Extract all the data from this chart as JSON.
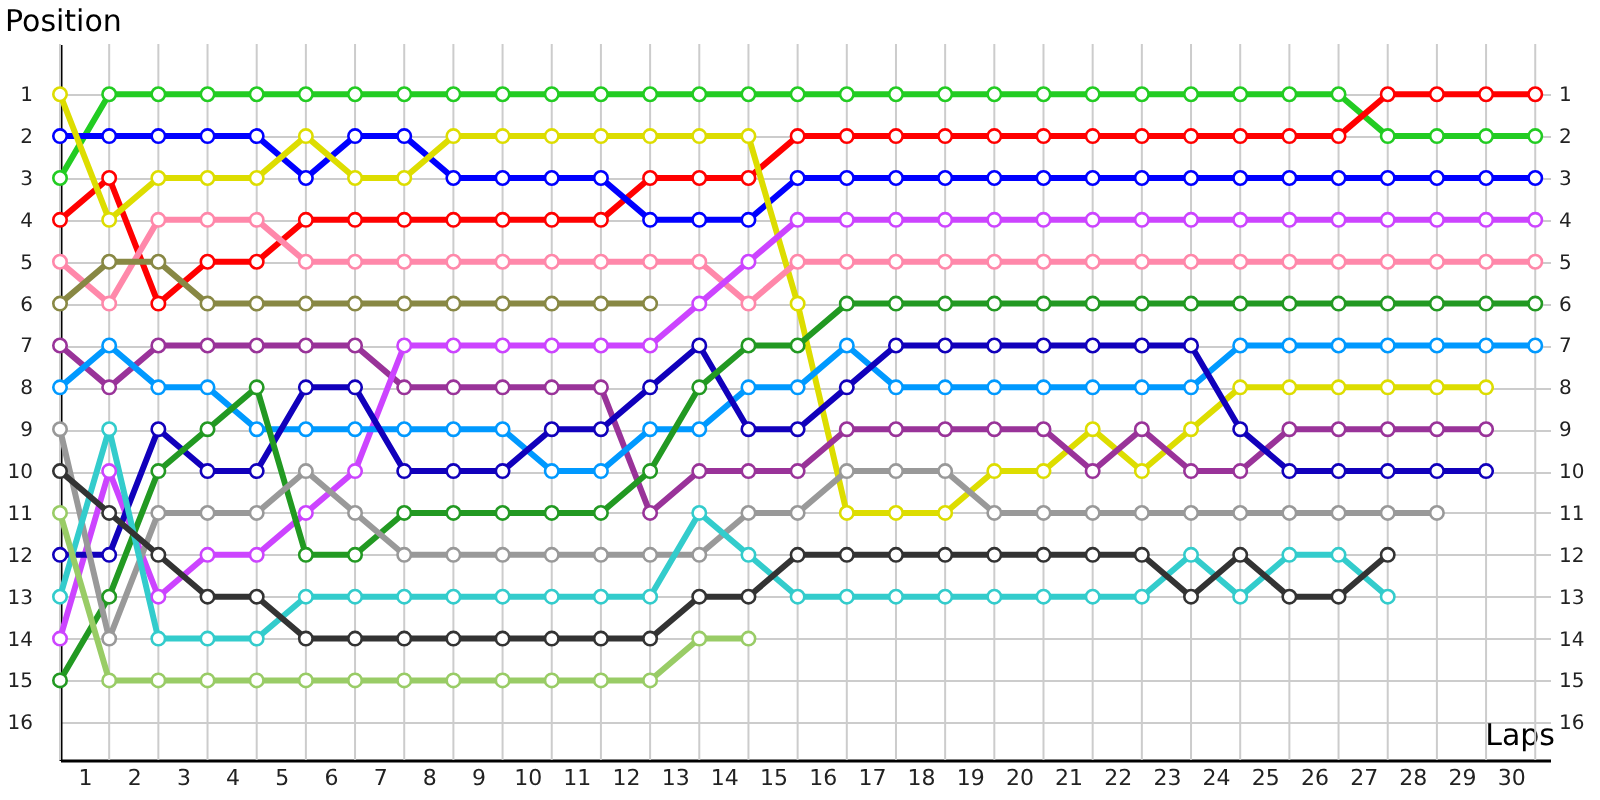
{
  "chart_data": {
    "type": "line",
    "xlabel": "Laps",
    "ylabel": "Position",
    "x": [
      0,
      1,
      2,
      3,
      4,
      5,
      6,
      7,
      8,
      9,
      10,
      11,
      12,
      13,
      14,
      15,
      16,
      17,
      18,
      19,
      20,
      21,
      22,
      23,
      24,
      25,
      26,
      27,
      28,
      29,
      30
    ],
    "xlim": [
      0,
      30.3
    ],
    "xticks": [
      {
        "value": 0.5,
        "label": "1"
      },
      {
        "value": 1.5,
        "label": "2"
      },
      {
        "value": 2.5,
        "label": "3"
      },
      {
        "value": 3.5,
        "label": "4"
      },
      {
        "value": 4.5,
        "label": "5"
      },
      {
        "value": 5.5,
        "label": "6"
      },
      {
        "value": 6.5,
        "label": "7"
      },
      {
        "value": 7.5,
        "label": "8"
      },
      {
        "value": 8.5,
        "label": "9"
      },
      {
        "value": 9.5,
        "label": "10"
      },
      {
        "value": 10.5,
        "label": "11"
      },
      {
        "value": 11.5,
        "label": "12"
      },
      {
        "value": 12.5,
        "label": "13"
      },
      {
        "value": 13.5,
        "label": "14"
      },
      {
        "value": 14.5,
        "label": "15"
      },
      {
        "value": 15.5,
        "label": "16"
      },
      {
        "value": 16.5,
        "label": "17"
      },
      {
        "value": 17.5,
        "label": "18"
      },
      {
        "value": 18.5,
        "label": "19"
      },
      {
        "value": 19.5,
        "label": "20"
      },
      {
        "value": 20.5,
        "label": "21"
      },
      {
        "value": 21.5,
        "label": "22"
      },
      {
        "value": 22.5,
        "label": "23"
      },
      {
        "value": 23.5,
        "label": "24"
      },
      {
        "value": 24.5,
        "label": "25"
      },
      {
        "value": 25.5,
        "label": "26"
      },
      {
        "value": 26.5,
        "label": "27"
      },
      {
        "value": 27.5,
        "label": "28"
      },
      {
        "value": 28.5,
        "label": "29"
      },
      {
        "value": 29.5,
        "label": "30"
      }
    ],
    "ylim": [
      16.9,
      -0.2
    ],
    "yticks": [
      1,
      2,
      3,
      4,
      5,
      6,
      7,
      8,
      9,
      10,
      11,
      12,
      13,
      14,
      15,
      16
    ],
    "y2lim": [
      16.9,
      -0.2
    ],
    "y2ticks": [
      1,
      2,
      3,
      4,
      5,
      6,
      7,
      8,
      9,
      10,
      11,
      12,
      13,
      14,
      15,
      16
    ],
    "grid": true,
    "legend": false,
    "marker": "circle",
    "line_style": "solid",
    "series": [
      {
        "color": "#22cc22",
        "values": [
          3,
          1,
          1,
          1,
          1,
          1,
          1,
          1,
          1,
          1,
          1,
          1,
          1,
          1,
          1,
          1,
          1,
          1,
          1,
          1,
          1,
          1,
          1,
          1,
          1,
          1,
          1,
          2,
          2,
          2,
          2
        ]
      },
      {
        "color": "#ff0000",
        "values": [
          4,
          3,
          6,
          5,
          5,
          4,
          4,
          4,
          4,
          4,
          4,
          4,
          3,
          3,
          3,
          2,
          2,
          2,
          2,
          2,
          2,
          2,
          2,
          2,
          2,
          2,
          2,
          1,
          1,
          1,
          1
        ]
      },
      {
        "color": "#0000ff",
        "values": [
          2,
          2,
          2,
          2,
          2,
          3,
          2,
          2,
          3,
          3,
          3,
          3,
          4,
          4,
          4,
          3,
          3,
          3,
          3,
          3,
          3,
          3,
          3,
          3,
          3,
          3,
          3,
          3,
          3,
          3,
          3
        ]
      },
      {
        "color": "#dddd00",
        "values": [
          1,
          4,
          3,
          3,
          3,
          2,
          3,
          3,
          2,
          2,
          2,
          2,
          2,
          2,
          2,
          6,
          11,
          11,
          11,
          10,
          10,
          9,
          10,
          9,
          8,
          8,
          8,
          8,
          8,
          8,
          null
        ]
      },
      {
        "color": "#ff88aa",
        "values": [
          5,
          6,
          4,
          4,
          4,
          5,
          5,
          5,
          5,
          5,
          5,
          5,
          5,
          5,
          6,
          5,
          5,
          5,
          5,
          5,
          5,
          5,
          5,
          5,
          5,
          5,
          5,
          5,
          5,
          5,
          5
        ]
      },
      {
        "color": "#888844",
        "values": [
          6,
          5,
          5,
          6,
          6,
          6,
          6,
          6,
          6,
          6,
          6,
          6,
          6,
          null,
          null,
          null,
          null,
          null,
          null,
          null,
          null,
          null,
          null,
          null,
          null,
          null,
          null,
          null,
          null,
          null,
          null
        ]
      },
      {
        "color": "#993399",
        "values": [
          7,
          8,
          7,
          7,
          7,
          7,
          7,
          8,
          8,
          8,
          8,
          8,
          11,
          10,
          10,
          10,
          9,
          9,
          9,
          9,
          9,
          10,
          9,
          10,
          10,
          9,
          9,
          9,
          9,
          9,
          null
        ]
      },
      {
        "color": "#cc44ff",
        "values": [
          14,
          10,
          13,
          12,
          12,
          11,
          10,
          7,
          7,
          7,
          7,
          7,
          7,
          6,
          5,
          4,
          4,
          4,
          4,
          4,
          4,
          4,
          4,
          4,
          4,
          4,
          4,
          4,
          4,
          4,
          4
        ]
      },
      {
        "color": "#0099ff",
        "values": [
          8,
          7,
          8,
          8,
          9,
          9,
          9,
          9,
          9,
          9,
          10,
          10,
          9,
          9,
          8,
          8,
          7,
          8,
          8,
          8,
          8,
          8,
          8,
          8,
          7,
          7,
          7,
          7,
          7,
          7,
          7
        ]
      },
      {
        "color": "#1100bb",
        "values": [
          12,
          12,
          9,
          10,
          10,
          8,
          8,
          10,
          10,
          10,
          9,
          9,
          8,
          7,
          9,
          9,
          8,
          7,
          7,
          7,
          7,
          7,
          7,
          7,
          9,
          10,
          10,
          10,
          10,
          10,
          null
        ]
      },
      {
        "color": "#229922",
        "values": [
          15,
          13,
          10,
          9,
          8,
          12,
          12,
          11,
          11,
          11,
          11,
          11,
          10,
          8,
          7,
          7,
          6,
          6,
          6,
          6,
          6,
          6,
          6,
          6,
          6,
          6,
          6,
          6,
          6,
          6,
          6
        ]
      },
      {
        "color": "#999999",
        "values": [
          9,
          14,
          11,
          11,
          11,
          10,
          11,
          12,
          12,
          12,
          12,
          12,
          12,
          12,
          11,
          11,
          10,
          10,
          10,
          11,
          11,
          11,
          11,
          11,
          11,
          11,
          11,
          11,
          11,
          null,
          null
        ]
      },
      {
        "color": "#33cccc",
        "values": [
          13,
          9,
          14,
          14,
          14,
          13,
          13,
          13,
          13,
          13,
          13,
          13,
          13,
          11,
          12,
          13,
          13,
          13,
          13,
          13,
          13,
          13,
          13,
          12,
          13,
          12,
          12,
          13,
          null,
          null,
          null
        ]
      },
      {
        "color": "#333333",
        "values": [
          10,
          11,
          12,
          13,
          13,
          14,
          14,
          14,
          14,
          14,
          14,
          14,
          14,
          13,
          13,
          12,
          12,
          12,
          12,
          12,
          12,
          12,
          12,
          13,
          12,
          13,
          13,
          12,
          null,
          null,
          null
        ]
      },
      {
        "color": "#99cc66",
        "values": [
          11,
          15,
          15,
          15,
          15,
          15,
          15,
          15,
          15,
          15,
          15,
          15,
          15,
          14,
          14,
          null,
          null,
          null,
          null,
          null,
          null,
          null,
          null,
          null,
          null,
          null,
          null,
          null,
          null,
          null,
          null
        ]
      }
    ]
  }
}
